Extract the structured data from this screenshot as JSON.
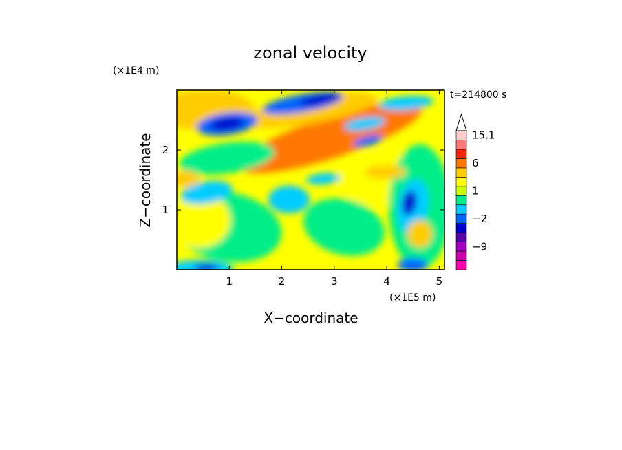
{
  "chart_data": {
    "type": "heatmap",
    "title": "zonal velocity",
    "xlabel": "X−coordinate",
    "ylabel": "Z−coordinate",
    "x_scale_label": "(×1E5 m)",
    "y_scale_label": "(×1E4 m)",
    "time_label": "t=214800 s",
    "xlim": [
      0.0,
      5.1
    ],
    "ylim": [
      0.0,
      3.0
    ],
    "x_ticks": [
      1,
      2,
      3,
      4,
      5
    ],
    "y_ticks": [
      1,
      2
    ],
    "colorbar": {
      "levels": [
        -15,
        -12,
        -9,
        -6,
        -3,
        -2,
        -1,
        0,
        1,
        2,
        3,
        6,
        9,
        12,
        15.1
      ],
      "colors": [
        "#ff00aa",
        "#cc00aa",
        "#a000bb",
        "#5500aa",
        "#0000cc",
        "#0066ff",
        "#00ccff",
        "#00ee88",
        "#ccff00",
        "#ffff00",
        "#ffcc00",
        "#ff7700",
        "#ff2200",
        "#ff7777",
        "#ffcccc"
      ],
      "labeled_ticks": [
        "15.1",
        "6",
        "1",
        "−2",
        "−9"
      ],
      "extend": "max"
    }
  }
}
